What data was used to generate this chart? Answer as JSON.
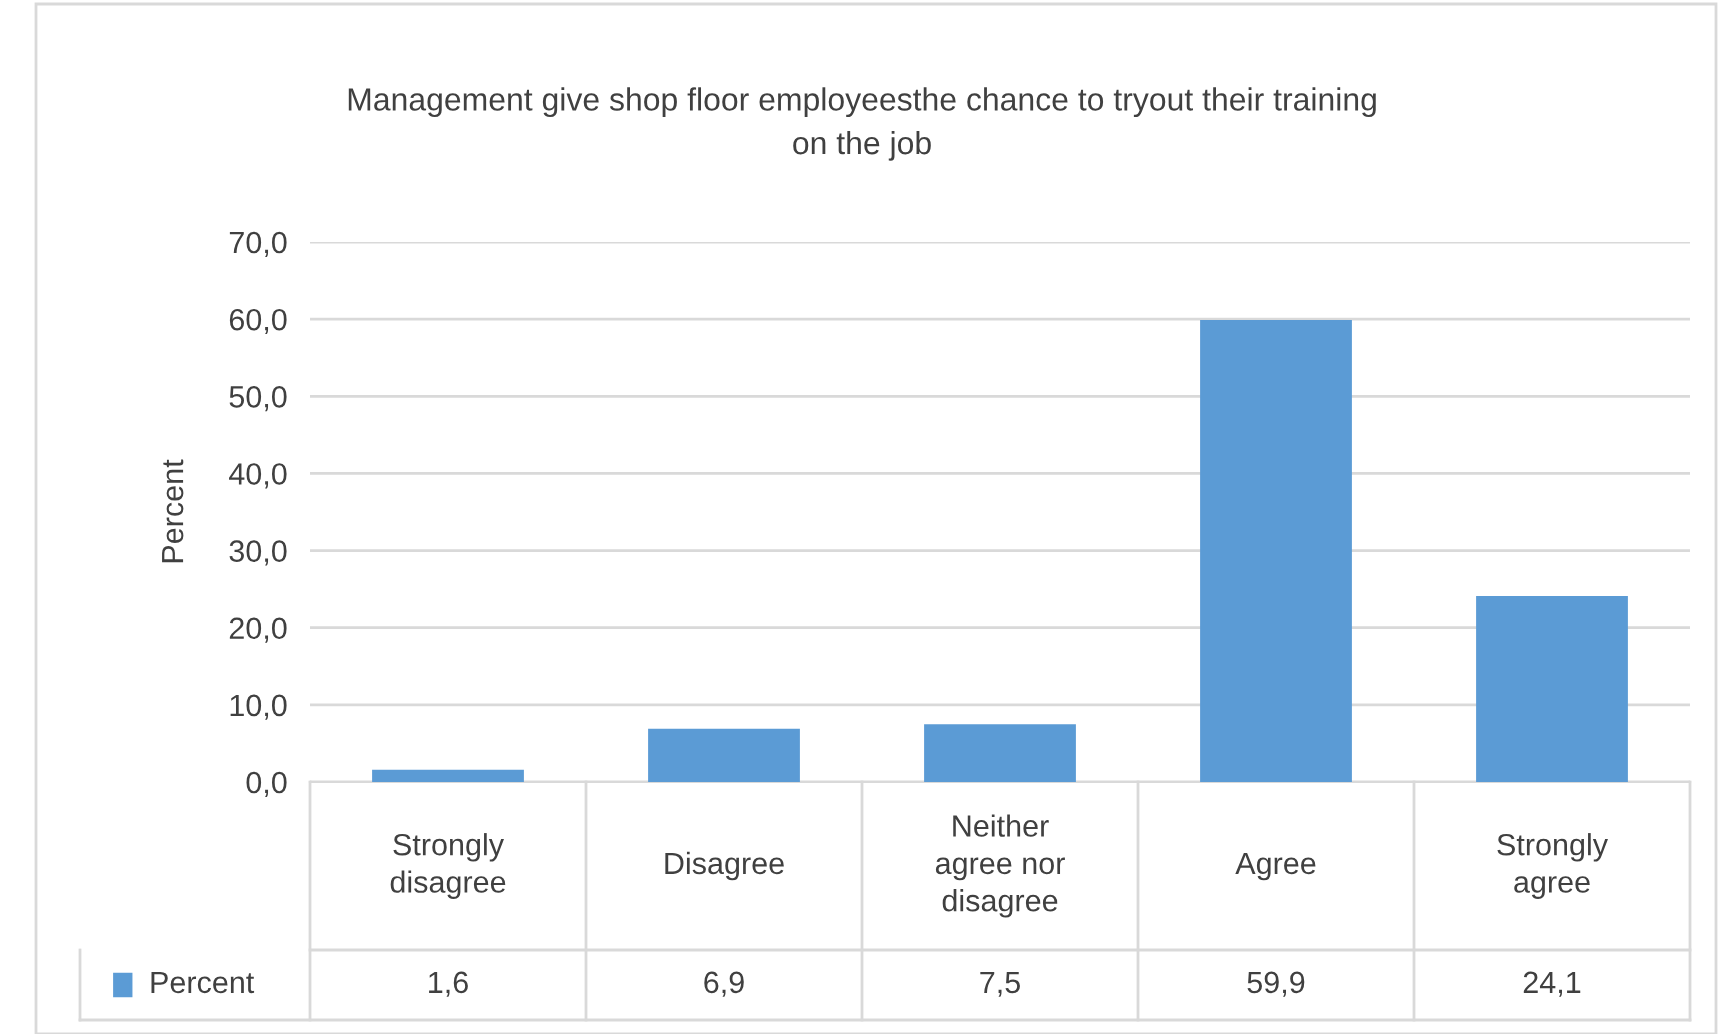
{
  "chart_data": {
    "type": "bar",
    "title": "Management give shop floor employeesthe chance to tryout their training on the job",
    "ylabel": "Percent",
    "categories": [
      "Strongly disagree",
      "Disagree",
      "Neither agree nor disagree",
      "Agree",
      "Strongly agree"
    ],
    "series": [
      {
        "name": "Percent",
        "color": "#5b9bd5",
        "values": [
          1.6,
          6.9,
          7.5,
          59.9,
          24.1
        ],
        "value_labels": [
          "1,6",
          "6,9",
          "7,5",
          "59,9",
          "24,1"
        ]
      }
    ],
    "ylim": [
      0,
      70
    ],
    "yticks": [
      {
        "value": 0,
        "label": "0,0"
      },
      {
        "value": 10,
        "label": "10,0"
      },
      {
        "value": 20,
        "label": "20,0"
      },
      {
        "value": 30,
        "label": "30,0"
      },
      {
        "value": 40,
        "label": "40,0"
      },
      {
        "value": 50,
        "label": "50,0"
      },
      {
        "value": 60,
        "label": "60,0"
      },
      {
        "value": 70,
        "label": "70,0"
      }
    ],
    "grid": "y",
    "legend": "bottom"
  }
}
